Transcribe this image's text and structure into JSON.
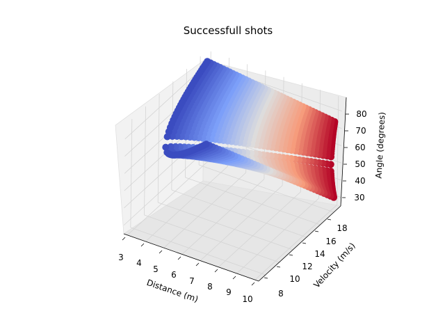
{
  "chart_data": {
    "type": "scatter",
    "projection": "3d",
    "title": "Successfull shots",
    "xlabel": "Distance (m)",
    "ylabel": "Velocity (m/s)",
    "zlabel": "Angle (degrees)",
    "x_ticks": [
      "3",
      "4",
      "5",
      "6",
      "7",
      "8",
      "9",
      "10"
    ],
    "y_ticks": [
      "8",
      "10",
      "12",
      "14",
      "16",
      "18"
    ],
    "z_ticks": [
      "30",
      "40",
      "50",
      "60",
      "70",
      "80"
    ],
    "xlim": [
      2.8,
      10.2
    ],
    "ylim": [
      7,
      19
    ],
    "zlim": [
      25,
      88
    ],
    "grid": true,
    "colormap": "coolwarm",
    "color_by": "distance",
    "surface": {
      "distance": [
        3,
        10
      ],
      "velocity": [
        8.5,
        18.5
      ],
      "angle_low_branch": [
        36,
        31
      ],
      "angle_high_branch": [
        84,
        75
      ]
    }
  }
}
